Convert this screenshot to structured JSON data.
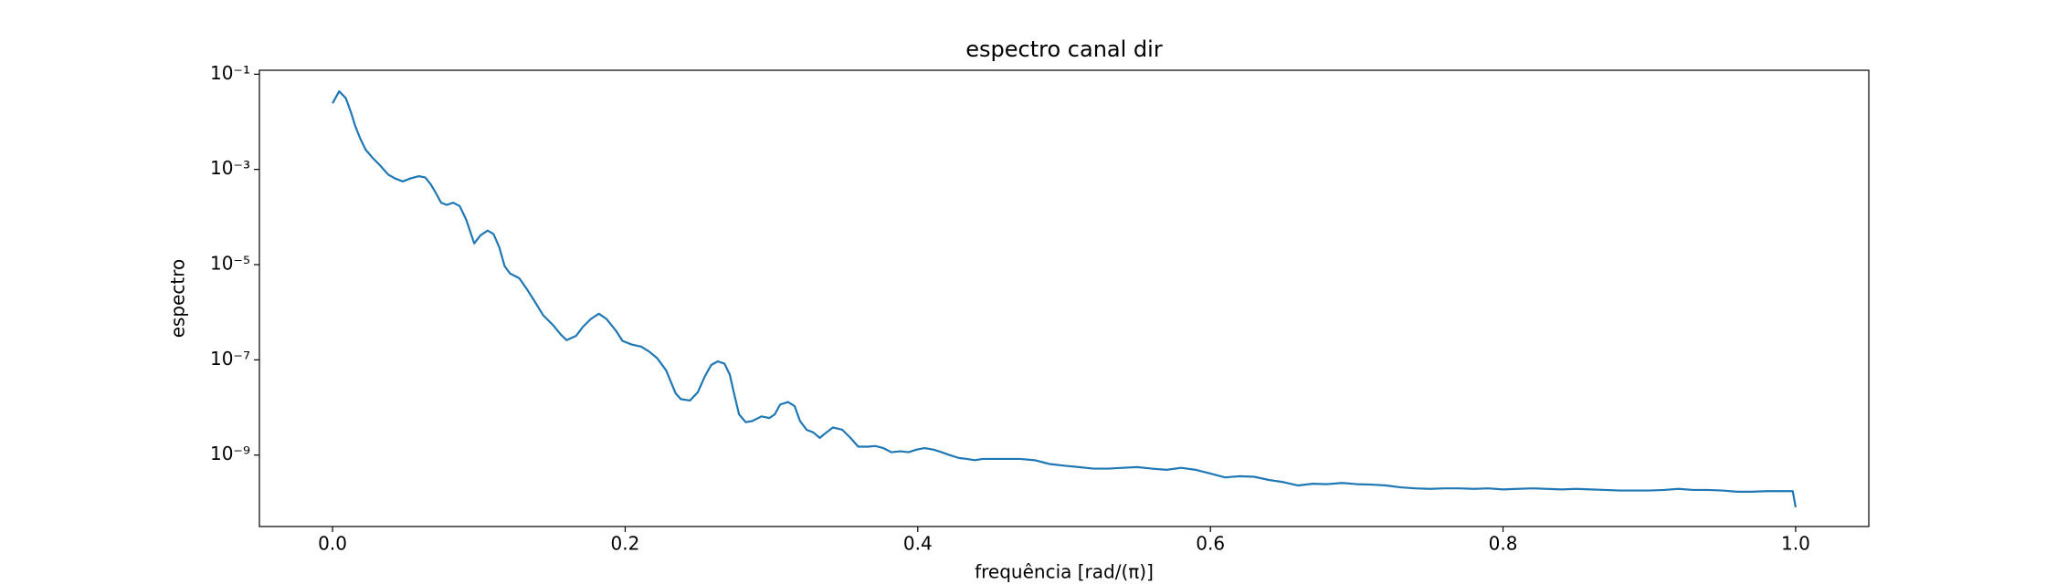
{
  "chart_data": {
    "type": "line",
    "title": "espectro canal dir",
    "xlabel": "frequência [rad/(π)]",
    "ylabel": "espectro",
    "color": "#1f77b4",
    "yscale": "log",
    "xlim": [
      -0.05,
      1.05
    ],
    "ylim": [
      3.16e-11,
      0.121
    ],
    "xticks": [
      {
        "value": 0,
        "label": "0.0"
      },
      0.2,
      0.4,
      0.6,
      0.8,
      {
        "value": 1,
        "label": "1.0"
      }
    ],
    "yticks": [
      {
        "value": 0.1,
        "label": "10⁻¹"
      },
      {
        "value": 0.001,
        "label": "10⁻³"
      },
      {
        "value": 1e-05,
        "label": "10⁻⁵"
      },
      {
        "value": 1e-07,
        "label": "10⁻⁷"
      },
      {
        "value": 1e-09,
        "label": "10⁻⁹"
      }
    ],
    "x": [
      0,
      0.0045,
      0.009,
      0.0127,
      0.0154,
      0.019,
      0.0226,
      0.027,
      0.0326,
      0.038,
      0.0425,
      0.048,
      0.0534,
      0.059,
      0.0633,
      0.067,
      0.0706,
      0.0742,
      0.078,
      0.0824,
      0.0869,
      0.0914,
      0.0968,
      0.101,
      0.106,
      0.11,
      0.114,
      0.1176,
      0.1213,
      0.1276,
      0.133,
      0.1376,
      0.1439,
      0.1511,
      0.156,
      0.16,
      0.1665,
      0.171,
      0.1765,
      0.182,
      0.1873,
      0.1937,
      0.1982,
      0.2045,
      0.2109,
      0.2163,
      0.2217,
      0.228,
      0.2344,
      0.238,
      0.2443,
      0.2497,
      0.2543,
      0.2588,
      0.2633,
      0.2679,
      0.2715,
      0.2742,
      0.2778,
      0.2824,
      0.2869,
      0.2932,
      0.2986,
      0.3023,
      0.3059,
      0.3113,
      0.3158,
      0.3195,
      0.324,
      0.3285,
      0.333,
      0.3376,
      0.342,
      0.3484,
      0.354,
      0.3593,
      0.3656,
      0.371,
      0.3765,
      0.3819,
      0.3882,
      0.3937,
      0.399,
      0.4045,
      0.4109,
      0.4163,
      0.4217,
      0.428,
      0.4335,
      0.439,
      0.4443,
      0.45,
      0.46,
      0.47,
      0.48,
      0.49,
      0.5,
      0.51,
      0.52,
      0.53,
      0.54,
      0.55,
      0.56,
      0.57,
      0.58,
      0.59,
      0.6,
      0.61,
      0.62,
      0.63,
      0.64,
      0.65,
      0.66,
      0.67,
      0.68,
      0.69,
      0.7,
      0.71,
      0.72,
      0.73,
      0.74,
      0.75,
      0.76,
      0.77,
      0.78,
      0.79,
      0.8,
      0.81,
      0.82,
      0.83,
      0.84,
      0.85,
      0.86,
      0.87,
      0.88,
      0.89,
      0.9,
      0.91,
      0.92,
      0.93,
      0.94,
      0.95,
      0.96,
      0.97,
      0.98,
      0.99,
      0.998,
      1
    ],
    "values": [
      0.0245,
      0.0437,
      0.0316,
      0.0155,
      0.0083,
      0.0044,
      0.0026,
      0.0018,
      0.0012,
      0.00078,
      0.00065,
      0.00056,
      0.00065,
      0.00072,
      0.00068,
      0.00049,
      0.00032,
      0.0002,
      0.00018,
      0.0002,
      0.00017,
      8.7e-05,
      2.8e-05,
      4.1e-05,
      5.2e-05,
      4.4e-05,
      2.3e-05,
      9.3e-06,
      6.5e-06,
      5.2e-06,
      3e-06,
      1.8e-06,
      8.7e-07,
      5.2e-07,
      3.4e-07,
      2.6e-07,
      3.2e-07,
      4.9e-07,
      7.2e-07,
      9.3e-07,
      7.2e-07,
      4.1e-07,
      2.5e-07,
      2.1e-07,
      1.9e-07,
      1.5e-07,
      1.1e-07,
      6e-08,
      2e-08,
      1.5e-08,
      1.4e-08,
      2.1e-08,
      4.4e-08,
      7.8e-08,
      9.3e-08,
      8.3e-08,
      4.9e-08,
      2.1e-08,
      7.2e-09,
      4.9e-09,
      5.2e-09,
      6.5e-09,
      6e-09,
      7.2e-09,
      1.15e-08,
      1.3e-08,
      1.07e-08,
      5.2e-09,
      3.4e-09,
      3e-09,
      2.3e-09,
      3e-09,
      3.8e-09,
      3.4e-09,
      2.3e-09,
      1.5e-09,
      1.5e-09,
      1.55e-09,
      1.4e-09,
      1.15e-09,
      1.2e-09,
      1.15e-09,
      1.3e-09,
      1.4e-09,
      1.3e-09,
      1.15e-09,
      1e-09,
      8.7e-10,
      8.3e-10,
      7.8e-10,
      8.3e-10,
      8.3e-10,
      8.3e-10,
      8.3e-10,
      7.8e-10,
      6.5e-10,
      6e-10,
      5.6e-10,
      5.2e-10,
      5.2e-10,
      5.4e-10,
      5.6e-10,
      5.2e-10,
      4.9e-10,
      5.4e-10,
      4.9e-10,
      4.1e-10,
      3.4e-10,
      3.6e-10,
      3.5e-10,
      3e-10,
      2.7e-10,
      2.3e-10,
      2.5e-10,
      2.45e-10,
      2.6e-10,
      2.45e-10,
      2.4e-10,
      2.3e-10,
      2.1e-10,
      2e-10,
      1.95e-10,
      2e-10,
      2e-10,
      1.95e-10,
      2e-10,
      1.9e-10,
      1.95e-10,
      2e-10,
      1.95e-10,
      1.9e-10,
      1.95e-10,
      1.9e-10,
      1.85e-10,
      1.8e-10,
      1.8e-10,
      1.8e-10,
      1.85e-10,
      1.95e-10,
      1.85e-10,
      1.85e-10,
      1.8e-10,
      1.7e-10,
      1.7e-10,
      1.75e-10,
      1.75e-10,
      1.75e-10,
      8e-11
    ]
  }
}
